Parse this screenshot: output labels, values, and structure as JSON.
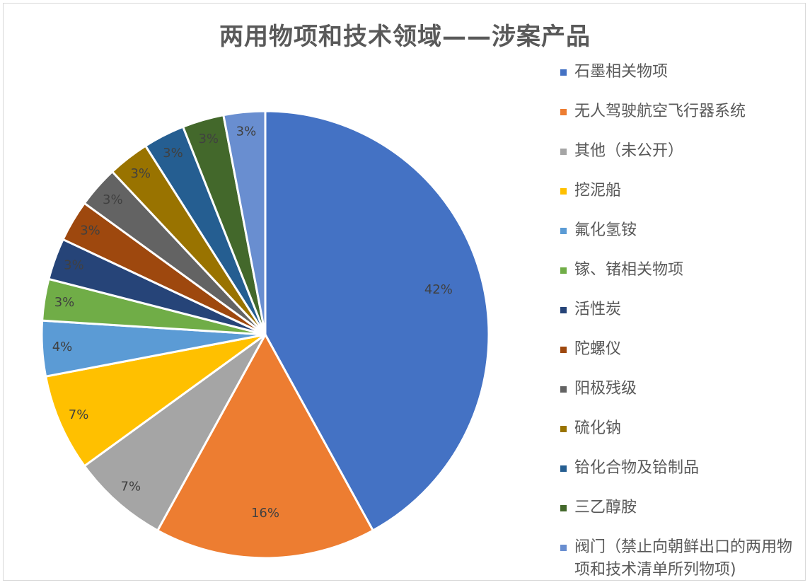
{
  "chart_data": {
    "type": "pie",
    "title": "两用物项和技术领域——涉案产品",
    "legend_position": "right",
    "slices": [
      {
        "name": "石墨相关物项",
        "value": 42,
        "label": "42%",
        "color": "#4472C4"
      },
      {
        "name": "无人驾驶航空飞行器系统",
        "value": 16,
        "label": "16%",
        "color": "#ED7D31"
      },
      {
        "name": "其他（未公开）",
        "value": 7,
        "label": "7%",
        "color": "#A5A5A5"
      },
      {
        "name": "挖泥船",
        "value": 7,
        "label": "7%",
        "color": "#FFC000"
      },
      {
        "name": "氟化氢铵",
        "value": 4,
        "label": "4%",
        "color": "#5B9BD5"
      },
      {
        "name": "镓、锗相关物项",
        "value": 3,
        "label": "3%",
        "color": "#70AD47"
      },
      {
        "name": "活性炭",
        "value": 3,
        "label": "3%",
        "color": "#264478"
      },
      {
        "name": "陀螺仪",
        "value": 3,
        "label": "3%",
        "color": "#9E480E"
      },
      {
        "name": "阳极残级",
        "value": 3,
        "label": "3%",
        "color": "#636363"
      },
      {
        "name": "硫化钠",
        "value": 3,
        "label": "3%",
        "color": "#997300"
      },
      {
        "name": "铪化合物及铪制品",
        "value": 3,
        "label": "3%",
        "color": "#255E91"
      },
      {
        "name": "三乙醇胺",
        "value": 3,
        "label": "3%",
        "color": "#43682B"
      },
      {
        "name": "阀门（禁止向朝鲜出口的两用物项和技术清单所列物项)",
        "value": 3,
        "label": "3%",
        "color": "#698ED0"
      }
    ]
  }
}
